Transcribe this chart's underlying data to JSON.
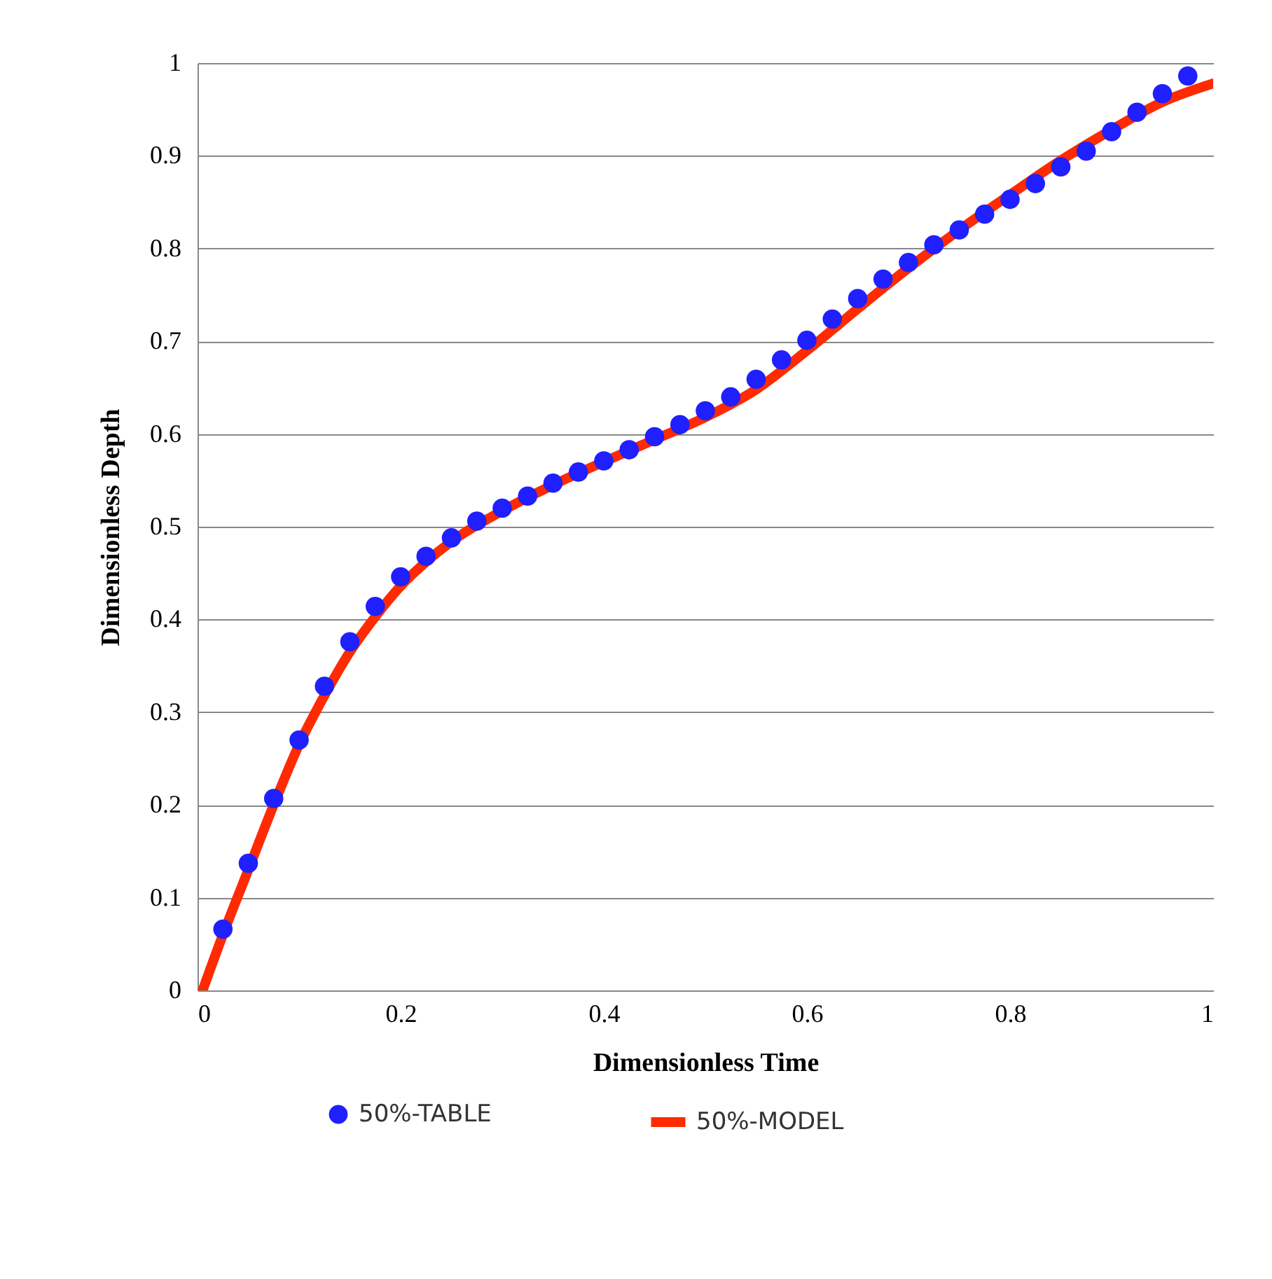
{
  "chart_data": {
    "type": "line",
    "xlabel": "Dimensionless Time",
    "ylabel": "Dimensionless Depth",
    "xlim": [
      0,
      1
    ],
    "ylim": [
      0,
      1
    ],
    "xticks": [
      0,
      0.2,
      0.4,
      0.6,
      0.8,
      1
    ],
    "yticks": [
      0,
      0.1,
      0.2,
      0.3,
      0.4,
      0.5,
      0.6,
      0.7,
      0.8,
      0.9,
      1
    ],
    "grid": "y",
    "legend": "bottom",
    "series": [
      {
        "name": "50%-TABLE",
        "type": "scatter",
        "marker": "circle",
        "color": "#1f1fff",
        "x": [
          0.025,
          0.05,
          0.075,
          0.1,
          0.125,
          0.15,
          0.175,
          0.2,
          0.225,
          0.25,
          0.275,
          0.3,
          0.325,
          0.35,
          0.375,
          0.4,
          0.425,
          0.45,
          0.475,
          0.5,
          0.525,
          0.55,
          0.575,
          0.6,
          0.625,
          0.65,
          0.675,
          0.7,
          0.725,
          0.75,
          0.775,
          0.8,
          0.825,
          0.85,
          0.875,
          0.9,
          0.925,
          0.95,
          0.975
        ],
        "values": [
          0.066,
          0.137,
          0.207,
          0.27,
          0.328,
          0.376,
          0.414,
          0.446,
          0.468,
          0.488,
          0.506,
          0.52,
          0.533,
          0.547,
          0.559,
          0.571,
          0.583,
          0.597,
          0.61,
          0.625,
          0.64,
          0.659,
          0.68,
          0.701,
          0.724,
          0.746,
          0.767,
          0.785,
          0.804,
          0.82,
          0.837,
          0.853,
          0.87,
          0.888,
          0.905,
          0.926,
          0.947,
          0.967,
          0.986
        ]
      },
      {
        "name": "50%-MODEL",
        "type": "line",
        "color": "#ff2a00",
        "x": [
          0.005,
          0.025,
          0.05,
          0.075,
          0.1,
          0.125,
          0.15,
          0.175,
          0.2,
          0.225,
          0.25,
          0.3,
          0.35,
          0.4,
          0.45,
          0.5,
          0.55,
          0.6,
          0.65,
          0.7,
          0.75,
          0.8,
          0.85,
          0.9,
          0.95,
          1
        ],
        "values": [
          0,
          0.06,
          0.13,
          0.2,
          0.265,
          0.318,
          0.365,
          0.403,
          0.436,
          0.462,
          0.484,
          0.517,
          0.545,
          0.57,
          0.594,
          0.618,
          0.648,
          0.69,
          0.735,
          0.779,
          0.82,
          0.858,
          0.895,
          0.928,
          0.958,
          0.978
        ]
      }
    ]
  }
}
